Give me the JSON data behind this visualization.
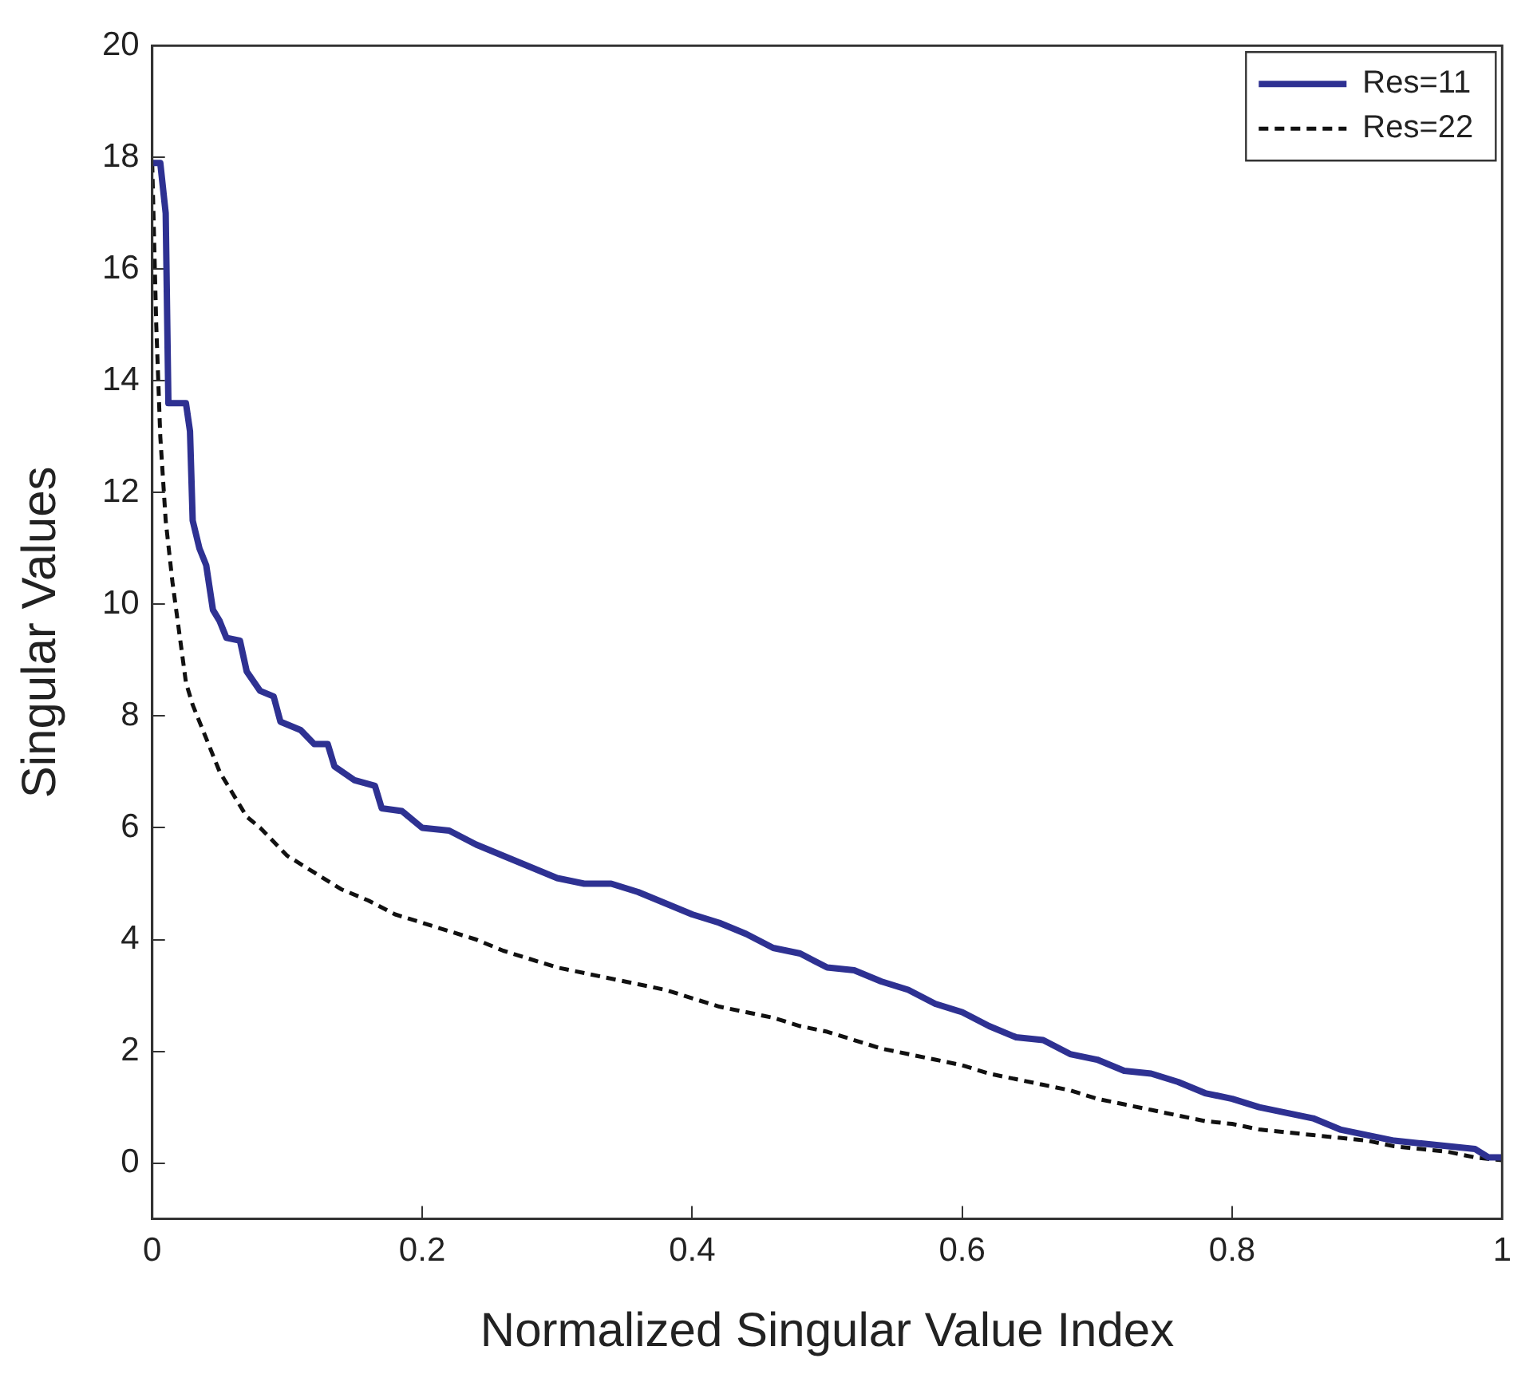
{
  "chart_data": {
    "type": "line",
    "xlabel": "Normalized Singular Value Index",
    "ylabel": "Singular Values",
    "xlim": [
      0,
      1
    ],
    "xticks": [
      0,
      0.2,
      0.4,
      0.6,
      0.8,
      1
    ],
    "ylim": [
      -1,
      20
    ],
    "yticks": [
      0,
      2,
      4,
      6,
      8,
      10,
      12,
      14,
      16,
      18,
      20
    ],
    "grid": false,
    "legend": "top right",
    "marker": "none",
    "series": [
      {
        "name": "Res=11",
        "color": "#2e3192",
        "line_style": "solid",
        "x": [
          0,
          0.006,
          0.01,
          0.012,
          0.025,
          0.028,
          0.03,
          0.035,
          0.04,
          0.045,
          0.05,
          0.055,
          0.065,
          0.07,
          0.08,
          0.09,
          0.095,
          0.11,
          0.12,
          0.13,
          0.135,
          0.15,
          0.165,
          0.17,
          0.185,
          0.2,
          0.22,
          0.24,
          0.26,
          0.28,
          0.3,
          0.32,
          0.34,
          0.36,
          0.38,
          0.4,
          0.42,
          0.44,
          0.46,
          0.48,
          0.5,
          0.52,
          0.54,
          0.56,
          0.58,
          0.6,
          0.62,
          0.64,
          0.66,
          0.68,
          0.7,
          0.72,
          0.74,
          0.76,
          0.78,
          0.8,
          0.82,
          0.84,
          0.86,
          0.88,
          0.9,
          0.92,
          0.94,
          0.96,
          0.98,
          0.99,
          1
        ],
        "values": [
          17.9,
          17.9,
          17,
          13.6,
          13.6,
          13.1,
          11.5,
          11,
          10.7,
          9.9,
          9.7,
          9.4,
          9.35,
          8.8,
          8.45,
          8.35,
          7.9,
          7.75,
          7.5,
          7.5,
          7.1,
          6.85,
          6.75,
          6.35,
          6.3,
          6,
          5.95,
          5.7,
          5.5,
          5.3,
          5.1,
          5,
          5,
          4.85,
          4.65,
          4.45,
          4.3,
          4.1,
          3.85,
          3.75,
          3.5,
          3.45,
          3.25,
          3.1,
          2.85,
          2.7,
          2.45,
          2.25,
          2.2,
          1.95,
          1.85,
          1.65,
          1.6,
          1.45,
          1.25,
          1.15,
          1,
          0.9,
          0.8,
          0.6,
          0.5,
          0.4,
          0.35,
          0.3,
          0.25,
          0.1,
          0.1
        ]
      },
      {
        "name": "Res=22",
        "color": "#111111",
        "line_style": "dashed",
        "x": [
          0,
          0.003,
          0.006,
          0.01,
          0.015,
          0.02,
          0.025,
          0.03,
          0.04,
          0.05,
          0.06,
          0.07,
          0.08,
          0.1,
          0.12,
          0.14,
          0.16,
          0.18,
          0.2,
          0.22,
          0.24,
          0.26,
          0.28,
          0.3,
          0.32,
          0.34,
          0.36,
          0.38,
          0.4,
          0.42,
          0.44,
          0.46,
          0.48,
          0.5,
          0.52,
          0.54,
          0.56,
          0.58,
          0.6,
          0.62,
          0.64,
          0.66,
          0.68,
          0.7,
          0.72,
          0.74,
          0.76,
          0.78,
          0.8,
          0.82,
          0.84,
          0.86,
          0.88,
          0.9,
          0.92,
          0.94,
          0.96,
          0.98,
          1
        ],
        "values": [
          17.9,
          15,
          13,
          11.5,
          10.4,
          9.5,
          8.6,
          8.2,
          7.6,
          7,
          6.6,
          6.2,
          6,
          5.5,
          5.2,
          4.9,
          4.7,
          4.45,
          4.3,
          4.15,
          4,
          3.8,
          3.65,
          3.5,
          3.4,
          3.3,
          3.2,
          3.1,
          2.95,
          2.8,
          2.7,
          2.6,
          2.45,
          2.35,
          2.2,
          2.05,
          1.95,
          1.85,
          1.75,
          1.6,
          1.5,
          1.4,
          1.3,
          1.15,
          1.05,
          0.95,
          0.85,
          0.75,
          0.7,
          0.6,
          0.55,
          0.5,
          0.45,
          0.4,
          0.3,
          0.25,
          0.2,
          0.1,
          0.05
        ]
      }
    ]
  }
}
